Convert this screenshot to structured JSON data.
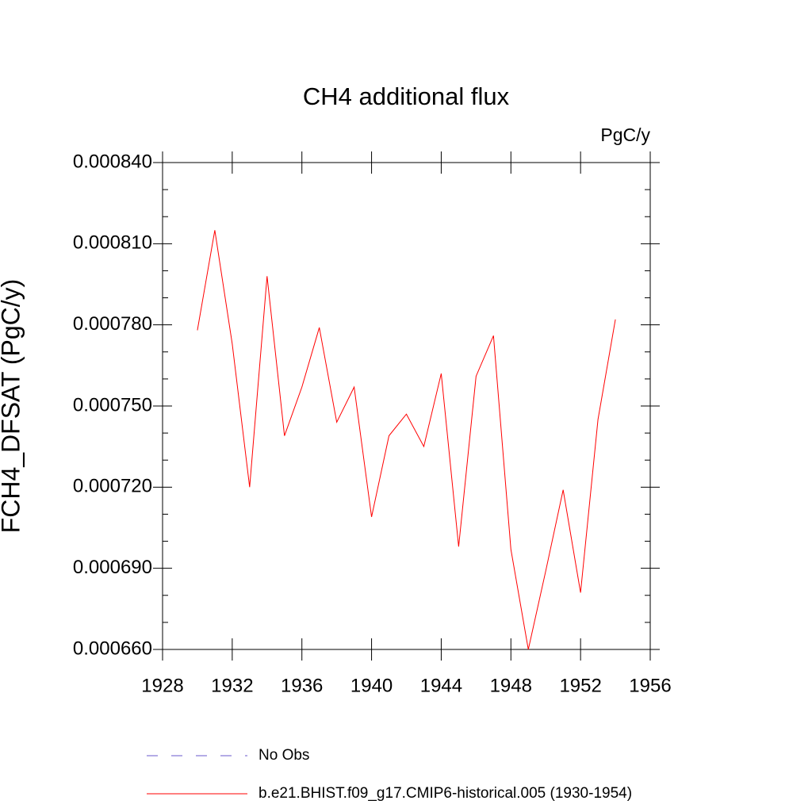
{
  "chart_data": {
    "type": "line",
    "title": "CH4 additional flux",
    "units": "PgC/y",
    "y_label": "FCH4_DFSAT  (PgC/y)",
    "x": [
      1930,
      1931,
      1932,
      1933,
      1934,
      1935,
      1936,
      1937,
      1938,
      1939,
      1940,
      1941,
      1942,
      1943,
      1944,
      1945,
      1946,
      1947,
      1948,
      1949,
      1950,
      1951,
      1952,
      1953,
      1954
    ],
    "series": [
      {
        "name": "b.e21.BHIST.f09_g17.CMIP6-historical.005 (1930-1954)",
        "color": "#ff0000",
        "values": [
          0.000778,
          0.000815,
          0.000773,
          0.00072,
          0.000798,
          0.000739,
          0.000757,
          0.000779,
          0.000744,
          0.000757,
          0.000709,
          0.000739,
          0.000747,
          0.000735,
          0.000762,
          0.000698,
          0.000761,
          0.000776,
          0.000697,
          0.00066,
          0.000689,
          0.000719,
          0.000681,
          0.000745,
          0.000782
        ]
      }
    ],
    "legend_extra": [
      {
        "name": "No Obs",
        "color": "#6a5acd",
        "dashed": true
      }
    ],
    "xlim": [
      1928,
      1956
    ],
    "xticks": [
      1928,
      1932,
      1936,
      1940,
      1944,
      1948,
      1952,
      1956
    ],
    "ylim": [
      0.00066,
      0.00084
    ],
    "yticks": [
      {
        "value": 0.00066,
        "label": "0.000660"
      },
      {
        "value": 0.00069,
        "label": "0.000690"
      },
      {
        "value": 0.00072,
        "label": "0.000720"
      },
      {
        "value": 0.00075,
        "label": "0.000750"
      },
      {
        "value": 0.00078,
        "label": "0.000780"
      },
      {
        "value": 0.00081,
        "label": "0.000810"
      },
      {
        "value": 0.00084,
        "label": "0.000840"
      }
    ],
    "yminorticks": [
      0.00067,
      0.00068,
      0.0007,
      0.00071,
      0.00073,
      0.00074,
      0.00076,
      0.00077,
      0.00079,
      0.0008,
      0.00082,
      0.00083
    ]
  }
}
